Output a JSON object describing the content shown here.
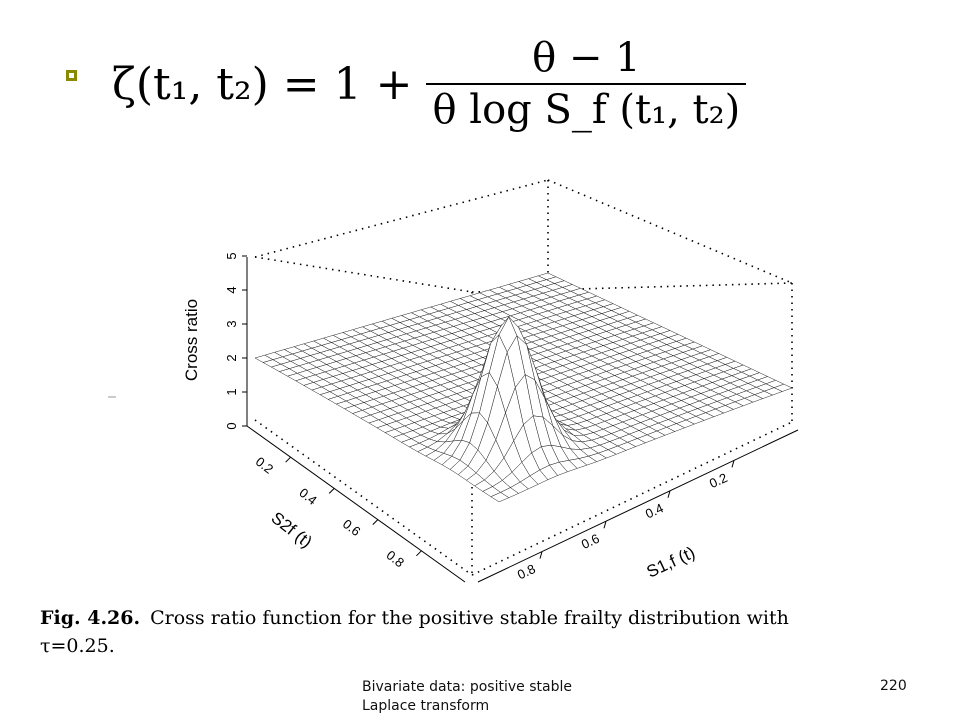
{
  "formula": {
    "lhs": "ζ(t₁, t₂) = 1 +",
    "numerator": "θ − 1",
    "denominator": "θ log S_f (t₁, t₂)"
  },
  "chart_data": {
    "type": "surface",
    "zlabel": "Cross ratio",
    "xlabel": "S1,f (t)",
    "ylabel": "S2f (t)",
    "z_ticks": [
      "0",
      "1",
      "2",
      "3",
      "4",
      "5"
    ],
    "x_ticks": [
      "0.2",
      "0.4",
      "0.6",
      "0.8"
    ],
    "y_ticks": [
      "0.2",
      "0.4",
      "0.6",
      "0.8"
    ],
    "zlim": [
      0,
      5
    ],
    "xlim": [
      0,
      1
    ],
    "ylim": [
      0,
      1
    ],
    "grid_size": 30,
    "peak": {
      "x": 0.8,
      "y": 0.8,
      "z": 5
    }
  },
  "caption": {
    "label": "Fig. 4.26.",
    "text": "Cross ratio function for the positive stable frailty distribution with τ=0.25."
  },
  "footer": {
    "title": "Bivariate data: positive stable Laplace transform",
    "page": "220"
  }
}
